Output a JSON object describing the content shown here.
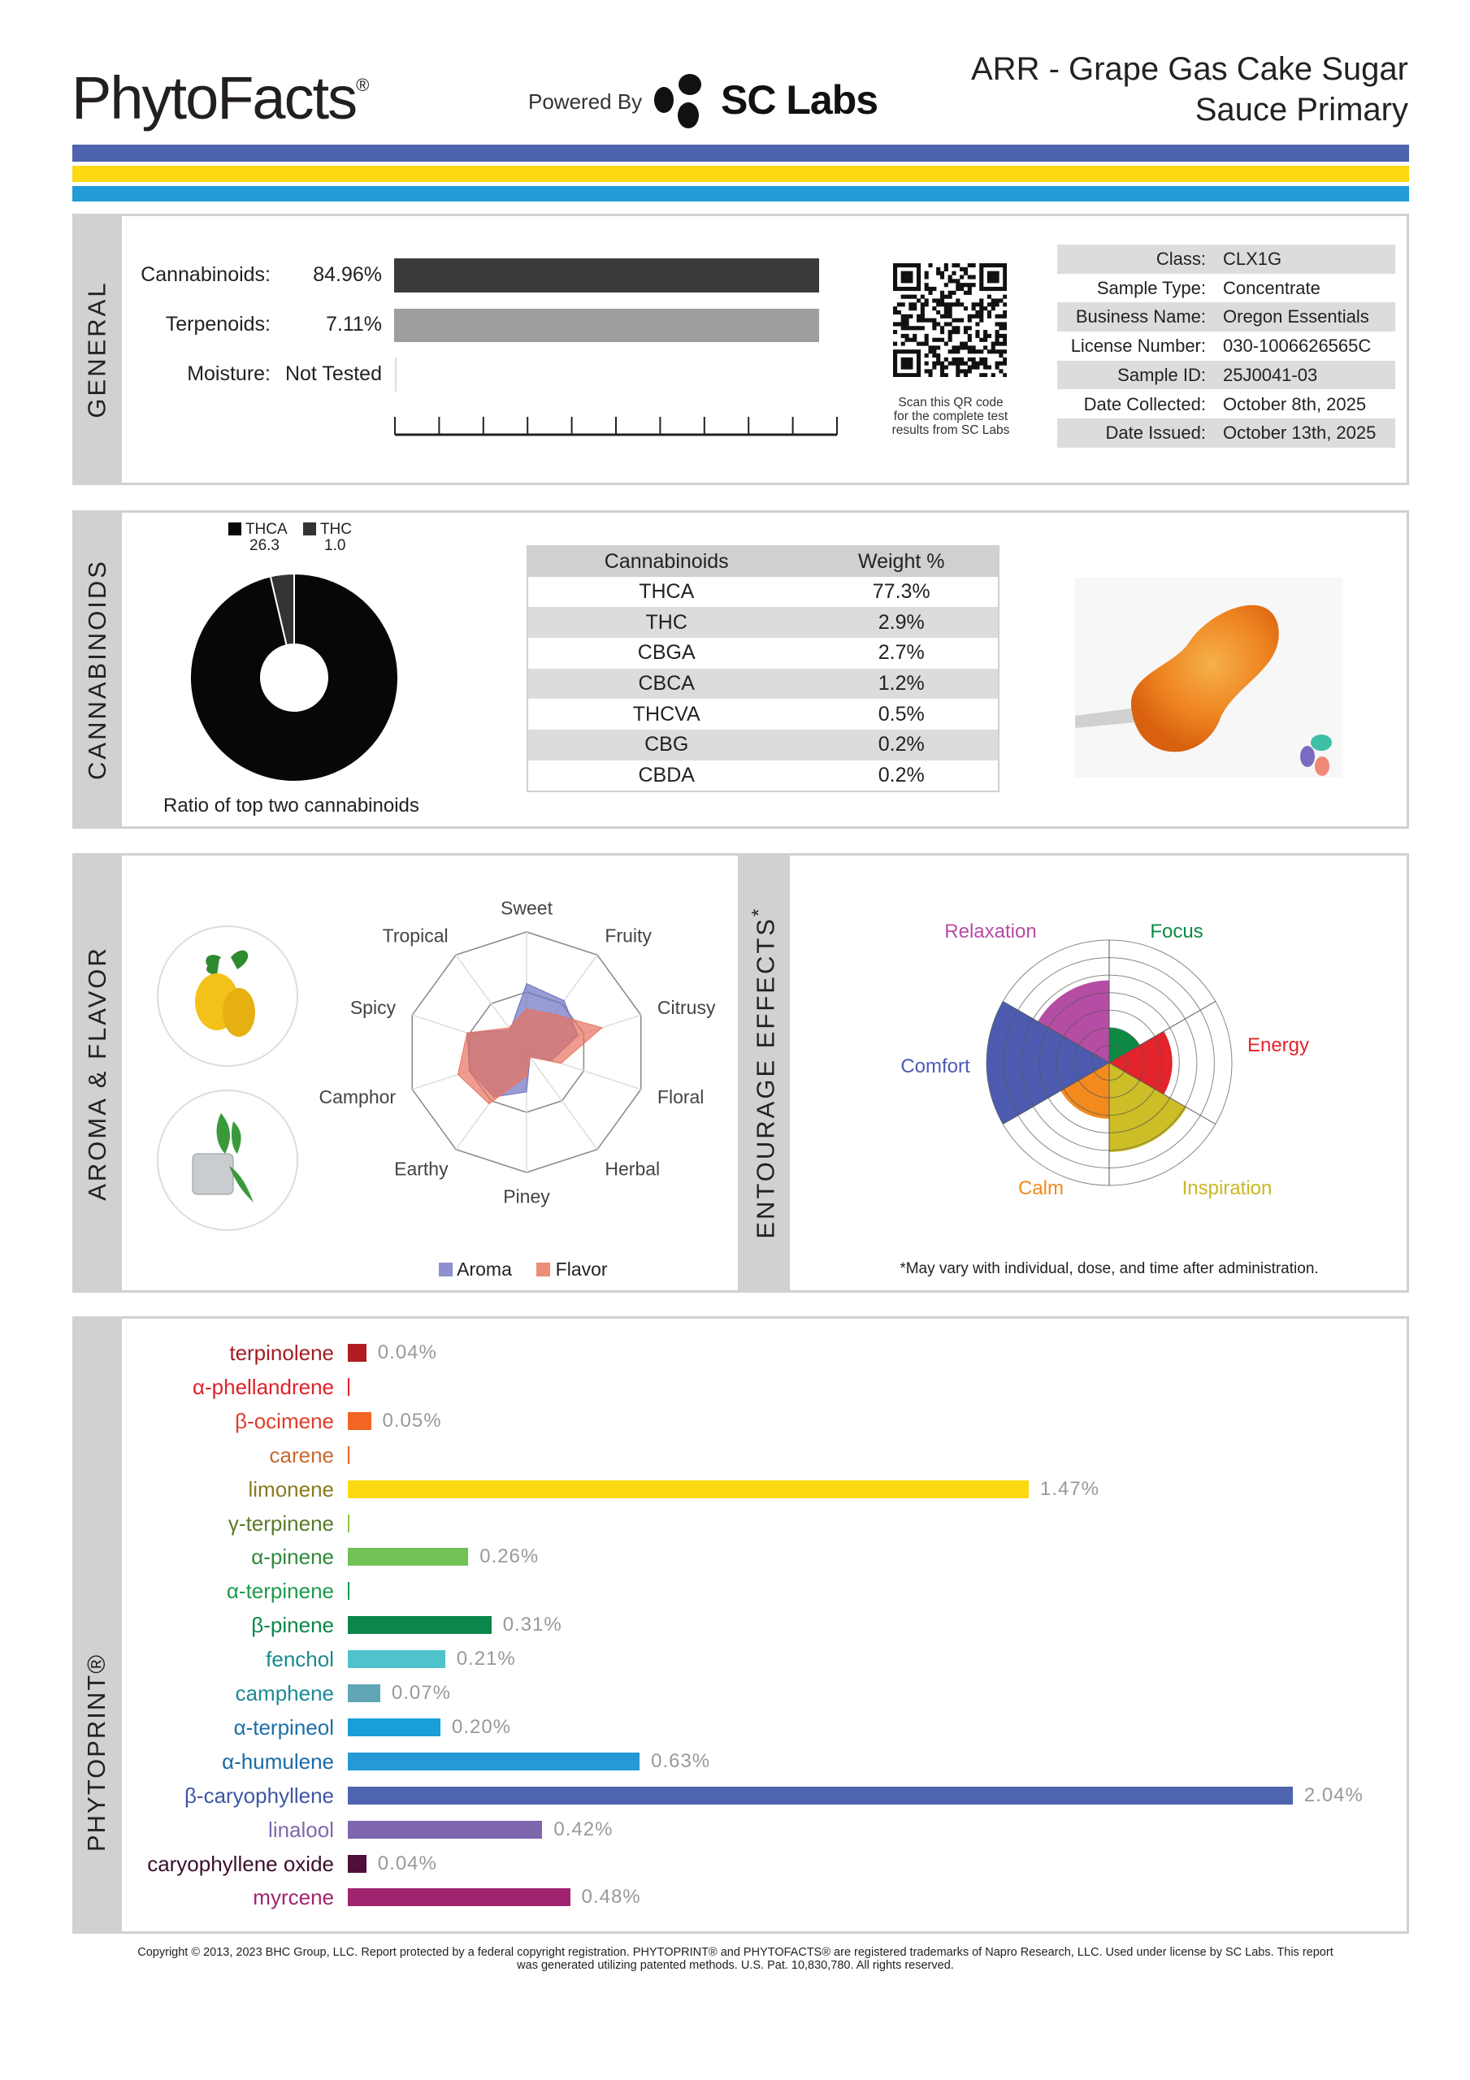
{
  "header": {
    "brand": "PhytoFacts",
    "brand_mark": "®",
    "powered_by": "Powered By",
    "partner_logo_text": "SC Labs",
    "title_line1": "ARR - Grape Gas Cake Sugar",
    "title_line2": "Sauce Primary"
  },
  "stripe_colors": [
    "#4e63ad",
    "#fcd912",
    "#229cd7"
  ],
  "general": {
    "section_label": "GENERAL",
    "rows": [
      {
        "label": "Cannabinoids:",
        "value": "84.96%",
        "fraction": 1.0,
        "color": "#3a3a3a"
      },
      {
        "label": "Terpenoids:",
        "value": "7.11%",
        "fraction": 1.0,
        "color": "#9e9e9e"
      },
      {
        "label": "Moisture:",
        "value": "Not Tested"
      }
    ],
    "qr_caption": [
      "Scan this QR code",
      "for the complete test",
      "results from SC Labs"
    ],
    "info": [
      {
        "label": "Class:",
        "value": "CLX1G"
      },
      {
        "label": "Sample Type:",
        "value": "Concentrate"
      },
      {
        "label": "Business Name:",
        "value": "Oregon Essentials"
      },
      {
        "label": "License Number:",
        "value": "030-1006626565C"
      },
      {
        "label": "Sample ID:",
        "value": "25J0041-03"
      },
      {
        "label": "Date Collected:",
        "value": "October 8th, 2025"
      },
      {
        "label": "Date Issued:",
        "value": "October 13th, 2025"
      }
    ]
  },
  "cannabinoids": {
    "section_label": "CANNABINOIDS",
    "ratio_caption": "Ratio of top two cannabinoids",
    "ratio": [
      {
        "name": "THCA",
        "value": "26.3",
        "color": "#050708"
      },
      {
        "name": "THC",
        "value": "1.0",
        "color": "#333333"
      }
    ],
    "table_headers": [
      "Cannabinoids",
      "Weight %"
    ],
    "table_rows": [
      [
        "THCA",
        "77.3%"
      ],
      [
        "THC",
        "2.9%"
      ],
      [
        "CBGA",
        "2.7%"
      ],
      [
        "CBCA",
        "1.2%"
      ],
      [
        "THCVA",
        "0.5%"
      ],
      [
        "CBG",
        "0.2%"
      ],
      [
        "CBDA",
        "0.2%"
      ]
    ]
  },
  "aroma": {
    "section_label": "AROMA & FLAVOR",
    "axes": [
      "Sweet",
      "Fruity",
      "Citrusy",
      "Floral",
      "Herbal",
      "Piney",
      "Earthy",
      "Camphor",
      "Spicy",
      "Tropical"
    ],
    "series": [
      {
        "name": "Aroma",
        "color": "#6e72c2",
        "values": [
          0.57,
          0.53,
          0.45,
          0.22,
          0.05,
          0.33,
          0.46,
          0.5,
          0.52,
          0.23
        ]
      },
      {
        "name": "Flavor",
        "color": "#e8725e",
        "values": [
          0.36,
          0.39,
          0.66,
          0.3,
          0.05,
          0.2,
          0.53,
          0.6,
          0.52,
          0.25
        ]
      }
    ],
    "images": [
      "lemon-image",
      "mint-ice-image"
    ]
  },
  "entourage": {
    "section_label": "ENTOURAGE EFFECTS",
    "section_mark": "*",
    "footnote": "*May vary with individual, dose, and time after administration.",
    "effects": [
      {
        "name": "Focus",
        "value": 2.0,
        "color": "#0c8a43"
      },
      {
        "name": "Energy",
        "value": 3.6,
        "color": "#e3242b"
      },
      {
        "name": "Inspiration",
        "value": 5.1,
        "color": "#cdbd26"
      },
      {
        "name": "Calm",
        "value": 3.2,
        "color": "#f28a1e"
      },
      {
        "name": "Comfort",
        "value": 7.0,
        "color": "#4c5bb0"
      },
      {
        "name": "Relaxation",
        "value": 4.7,
        "color": "#b64da4"
      }
    ],
    "label_colors": {
      "Focus": "#0c8a43",
      "Energy": "#e3242b",
      "Inspiration": "#c9b822",
      "Calm": "#f28a1e",
      "Comfort": "#4c5bb0",
      "Relaxation": "#b64da4"
    }
  },
  "phytoprint": {
    "section_label": "PHYTOPRINT®",
    "terpenes": [
      {
        "name": "terpinolene",
        "value": 0.04,
        "label": "0.04%",
        "color": "#b01c21",
        "text_color": "#a31d22"
      },
      {
        "name": "α-phellandrene",
        "value": null,
        "label": "",
        "color": "#e0202a",
        "text_color": "#e0202a"
      },
      {
        "name": "β-ocimene",
        "value": 0.05,
        "label": "0.05%",
        "color": "#f26522",
        "text_color": "#e03c2a"
      },
      {
        "name": "carene",
        "value": null,
        "label": "",
        "color": "#e0652a",
        "text_color": "#c8692e"
      },
      {
        "name": "limonene",
        "value": 1.47,
        "label": "1.47%",
        "color": "#fcd912",
        "text_color": "#8b7a1e"
      },
      {
        "name": "γ-terpinene",
        "value": null,
        "label": "",
        "color": "#8dc63f",
        "text_color": "#5a7a2a"
      },
      {
        "name": "α-pinene",
        "value": 0.26,
        "label": "0.26%",
        "color": "#72c157",
        "text_color": "#2d8a3a"
      },
      {
        "name": "α-terpinene",
        "value": null,
        "label": "",
        "color": "#1a9a4a",
        "text_color": "#1a9a4a"
      },
      {
        "name": "β-pinene",
        "value": 0.31,
        "label": "0.31%",
        "color": "#0b874a",
        "text_color": "#0b874a"
      },
      {
        "name": "fenchol",
        "value": 0.21,
        "label": "0.21%",
        "color": "#4fc3cc",
        "text_color": "#1a8a8f"
      },
      {
        "name": "camphene",
        "value": 0.07,
        "label": "0.07%",
        "color": "#61a6b6",
        "text_color": "#1c8a95"
      },
      {
        "name": "α-terpineol",
        "value": 0.2,
        "label": "0.20%",
        "color": "#189fd7",
        "text_color": "#1b6fa8"
      },
      {
        "name": "α-humulene",
        "value": 0.63,
        "label": "0.63%",
        "color": "#2499d5",
        "text_color": "#1a6aa6"
      },
      {
        "name": "β-caryophyllene",
        "value": 2.04,
        "label": "2.04%",
        "color": "#4e64ae",
        "text_color": "#3f56a4"
      },
      {
        "name": "linalool",
        "value": 0.42,
        "label": "0.42%",
        "color": "#7e67ad",
        "text_color": "#7e67ad"
      },
      {
        "name": "caryophyllene oxide",
        "value": 0.04,
        "label": "0.04%",
        "color": "#4f0f3a",
        "text_color": "#3a0f2e"
      },
      {
        "name": "myrcene",
        "value": 0.48,
        "label": "0.48%",
        "color": "#a0246f",
        "text_color": "#a0246f"
      }
    ]
  },
  "footer": {
    "line1": "Copyright © 2013, 2023 BHC Group, LLC. Report protected by a federal copyright registration. PHYTOPRINT® and PHYTOFACTS® are registered trademarks of Napro Research, LLC. Used under license by SC Labs. This report",
    "line2": "was generated utilizing patented methods. U.S. Pat. 10,830,780. All rights reserved."
  }
}
